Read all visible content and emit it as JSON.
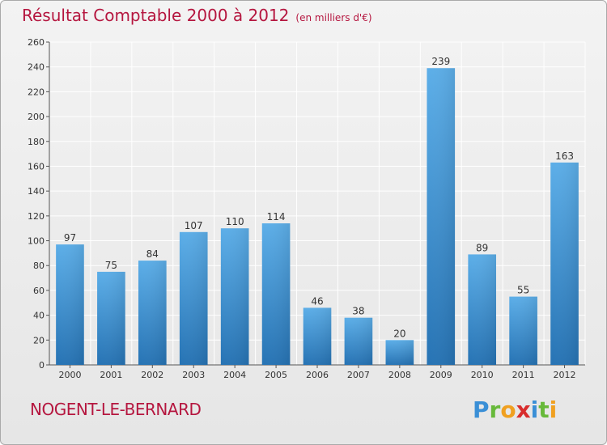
{
  "header": {
    "title": "Résultat Comptable 2000 à 2012",
    "unit": "(en milliers d'€)"
  },
  "footer": {
    "place": "NOGENT-LE-BERNARD",
    "logo_letters": [
      "P",
      "r",
      "o",
      "x",
      "i",
      "t",
      "i"
    ]
  },
  "colors": {
    "bar_top": "#5caee8",
    "bar_bottom": "#2673b4",
    "title": "#b5163f",
    "grid": "#ffffff"
  },
  "chart_data": {
    "type": "bar",
    "title": "Résultat Comptable 2000 à 2012",
    "subtitle": "(en milliers d'€)",
    "categories": [
      "2000",
      "2001",
      "2002",
      "2003",
      "2004",
      "2005",
      "2006",
      "2007",
      "2008",
      "2009",
      "2010",
      "2011",
      "2012"
    ],
    "values": [
      97,
      75,
      84,
      107,
      110,
      114,
      46,
      38,
      20,
      239,
      89,
      55,
      163
    ],
    "ylim": [
      0,
      260
    ],
    "yticks": [
      0,
      20,
      40,
      60,
      80,
      100,
      120,
      140,
      160,
      180,
      200,
      220,
      240,
      260
    ],
    "grid": true,
    "legend": "none"
  }
}
